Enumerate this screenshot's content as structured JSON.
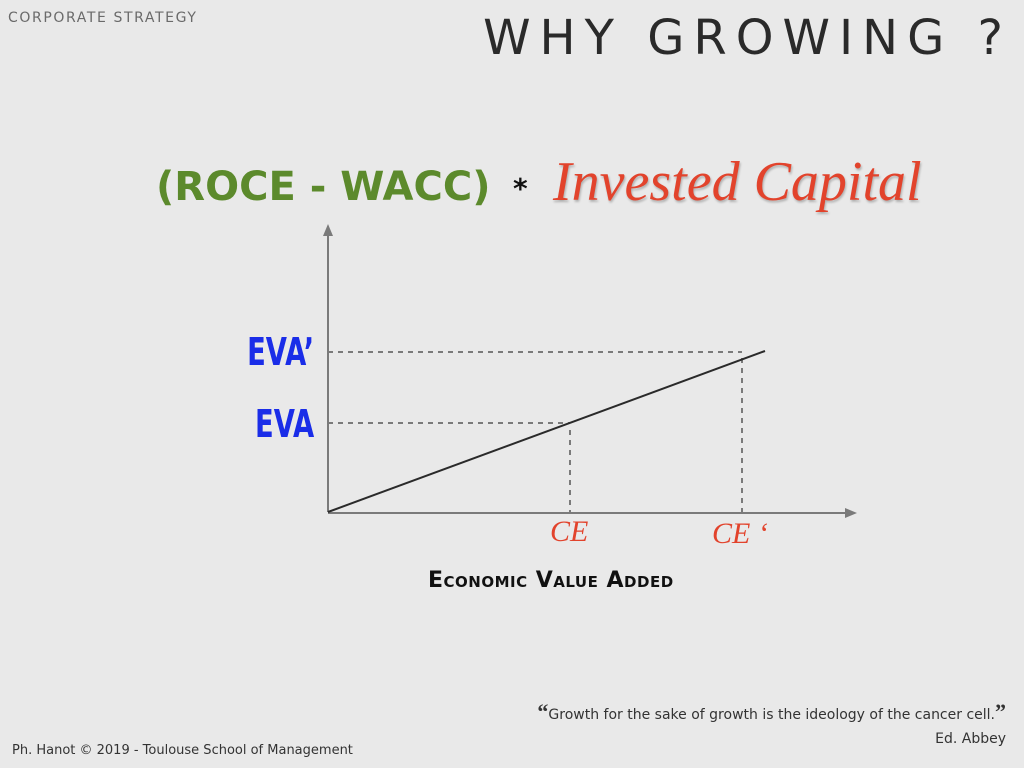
{
  "header": {
    "section": "CORPORATE STRATEGY",
    "title": "WHY GROWING ?"
  },
  "formula": {
    "ratio": "(ROCE - WACC)",
    "operator": "*",
    "capital": "Invested Capital"
  },
  "diagram": {
    "y_labels": {
      "eva_high": "EVA’",
      "eva_low": "EVA"
    },
    "x_labels": {
      "ce_low": "CE",
      "ce_high": "CE ‘"
    },
    "caption": "Economic Value Added"
  },
  "quote": {
    "open_mark": "“",
    "text": "Growth for the sake of growth is the ideology of the cancer cell.",
    "close_mark": "”",
    "author": "Ed. Abbey"
  },
  "footer": {
    "text": "Ph. Hanot © 2019  -  Toulouse School of Management"
  },
  "colors": {
    "green": "#5c8a2c",
    "red": "#e2432c",
    "blue": "#1a2de8"
  }
}
